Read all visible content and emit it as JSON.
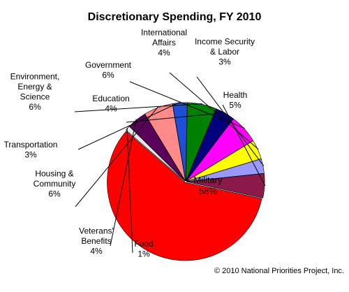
{
  "chart_data": {
    "type": "pie",
    "title": "Discretionary Spending, FY 2010",
    "footnote": "© 2010 National Priorities Project, Inc.",
    "unit": "%",
    "slices": [
      {
        "label": [
          "Military"
        ],
        "value": 58,
        "value_text": "58%",
        "color": "#ff0000"
      },
      {
        "label": [
          "Food"
        ],
        "value": 1,
        "value_text": "1%",
        "color": "#e8e8e8"
      },
      {
        "label": [
          "Veterans'",
          "Benefits"
        ],
        "value": 4,
        "value_text": "4%",
        "color": "#5a005a"
      },
      {
        "label": [
          "Housing &",
          "Community"
        ],
        "value": 6,
        "value_text": "6%",
        "color": "#ff8a8a"
      },
      {
        "label": [
          "Transportation"
        ],
        "value": 3,
        "value_text": "3%",
        "color": "#1f4fd6"
      },
      {
        "label": [
          "Environment,",
          "Energy &",
          "Science"
        ],
        "value": 6,
        "value_text": "6%",
        "color": "#008000"
      },
      {
        "label": [
          "Education"
        ],
        "value": 4,
        "value_text": "4%",
        "color": "#00007f"
      },
      {
        "label": [
          "Government"
        ],
        "value": 6,
        "value_text": "6%",
        "color": "#ff00ff"
      },
      {
        "label": [
          "International",
          "Affairs"
        ],
        "value": 4,
        "value_text": "4%",
        "color": "#ffff00"
      },
      {
        "label": [
          "Income Security",
          "& Labor"
        ],
        "value": 3,
        "value_text": "3%",
        "color": "#9999ff"
      },
      {
        "label": [
          "Health"
        ],
        "value": 5,
        "value_text": "5%",
        "color": "#8b1a4a"
      }
    ]
  }
}
